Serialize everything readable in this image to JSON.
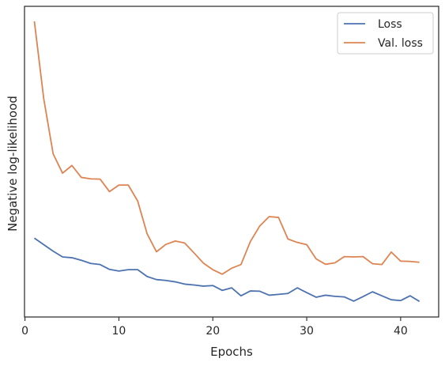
{
  "chart_data": {
    "type": "line",
    "title": "",
    "xlabel": "Epochs",
    "ylabel": "Negative log-likelihood",
    "xlim": [
      -0.05,
      44.05
    ],
    "ylim": [
      0,
      1
    ],
    "xticks": [
      0,
      10,
      20,
      30,
      40
    ],
    "yticks": [],
    "grid": false,
    "legend_position": "top-right",
    "series": [
      {
        "name": "Loss",
        "color": "#4c72b0",
        "x": [
          1,
          2,
          3,
          4,
          5,
          6,
          7,
          8,
          9,
          10,
          11,
          12,
          13,
          14,
          15,
          16,
          17,
          18,
          19,
          20,
          21,
          22,
          23,
          24,
          25,
          26,
          27,
          28,
          29,
          30,
          31,
          32,
          33,
          34,
          35,
          36,
          37,
          38,
          39,
          40,
          41,
          42
        ],
        "y": [
          0.236,
          0.213,
          0.19,
          0.17,
          0.167,
          0.158,
          0.147,
          0.143,
          0.126,
          0.12,
          0.125,
          0.125,
          0.101,
          0.09,
          0.087,
          0.082,
          0.074,
          0.071,
          0.067,
          0.069,
          0.052,
          0.061,
          0.033,
          0.05,
          0.049,
          0.035,
          0.038,
          0.041,
          0.061,
          0.044,
          0.028,
          0.035,
          0.031,
          0.029,
          0.014,
          0.03,
          0.047,
          0.033,
          0.019,
          0.016,
          0.033,
          0.013
        ]
      },
      {
        "name": "Val. loss",
        "color": "#dd8452",
        "x": [
          1,
          2,
          3,
          4,
          5,
          6,
          7,
          8,
          9,
          10,
          11,
          12,
          13,
          14,
          15,
          16,
          17,
          18,
          19,
          20,
          21,
          22,
          23,
          24,
          25,
          26,
          27,
          28,
          29,
          30,
          31,
          32,
          33,
          34,
          35,
          36,
          37,
          38,
          39,
          40,
          41,
          42
        ],
        "y": [
          1.0,
          0.727,
          0.533,
          0.465,
          0.492,
          0.45,
          0.445,
          0.444,
          0.4,
          0.423,
          0.423,
          0.367,
          0.252,
          0.188,
          0.214,
          0.226,
          0.219,
          0.184,
          0.148,
          0.125,
          0.109,
          0.13,
          0.143,
          0.224,
          0.279,
          0.312,
          0.309,
          0.233,
          0.221,
          0.213,
          0.163,
          0.144,
          0.149,
          0.171,
          0.17,
          0.171,
          0.146,
          0.143,
          0.187,
          0.155,
          0.154,
          0.151
        ]
      }
    ]
  }
}
